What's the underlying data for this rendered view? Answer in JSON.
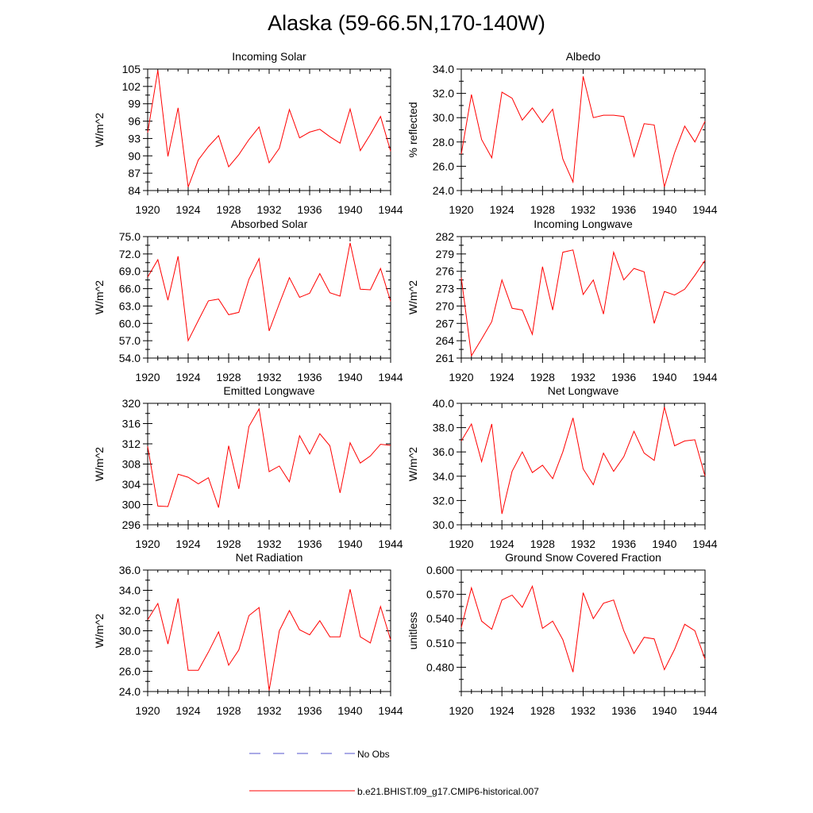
{
  "title": "Alaska (59-66.5N,170-140W)",
  "legend": [
    {
      "label": "No Obs",
      "color": "#5555cc",
      "dash": true
    },
    {
      "label": "b.e21.BHIST.f09_g17.CMIP6-historical.007",
      "color": "#ff0000",
      "dash": false
    }
  ],
  "line_color": "#ff0000",
  "chart_data": [
    {
      "type": "line",
      "title": "Incoming Solar",
      "ylabel": "W/m^2",
      "xlabel": "",
      "xlim": [
        1920,
        1944
      ],
      "ylim": [
        84,
        105
      ],
      "xticks": [
        1920,
        1924,
        1928,
        1932,
        1936,
        1940,
        1944
      ],
      "yticks": [
        84,
        87,
        90,
        93,
        96,
        99,
        102,
        105
      ],
      "ytick_labels": [
        "84",
        "87",
        "90",
        "93",
        "96",
        "99",
        "102",
        "105"
      ],
      "x": [
        1920,
        1921,
        1922,
        1923,
        1924,
        1925,
        1926,
        1927,
        1928,
        1929,
        1930,
        1931,
        1932,
        1933,
        1934,
        1935,
        1936,
        1937,
        1938,
        1939,
        1940,
        1941,
        1942,
        1943,
        1944
      ],
      "y": [
        94.0,
        104.8,
        89.9,
        98.3,
        84.6,
        89.3,
        91.6,
        93.5,
        88.1,
        90.2,
        92.8,
        95.0,
        88.8,
        91.3,
        98.0,
        93.1,
        94.1,
        94.6,
        93.3,
        92.2,
        98.1,
        90.9,
        93.7,
        96.8,
        90.8
      ]
    },
    {
      "type": "line",
      "title": "Albedo",
      "ylabel": "% reflected",
      "xlabel": "",
      "xlim": [
        1920,
        1944
      ],
      "ylim": [
        24.0,
        34.0
      ],
      "xticks": [
        1920,
        1924,
        1928,
        1932,
        1936,
        1940,
        1944
      ],
      "yticks": [
        24,
        26,
        28,
        30,
        32,
        34
      ],
      "ytick_labels": [
        "24.0",
        "26.0",
        "28.0",
        "30.0",
        "32.0",
        "34.0"
      ],
      "x": [
        1920,
        1921,
        1922,
        1923,
        1924,
        1925,
        1926,
        1927,
        1928,
        1929,
        1930,
        1931,
        1932,
        1933,
        1934,
        1935,
        1936,
        1937,
        1938,
        1939,
        1940,
        1941,
        1942,
        1943,
        1944
      ],
      "y": [
        27.0,
        31.9,
        28.2,
        26.7,
        32.1,
        31.6,
        29.8,
        30.8,
        29.6,
        30.7,
        26.6,
        24.7,
        33.4,
        30.0,
        30.2,
        30.2,
        30.1,
        26.8,
        29.5,
        29.4,
        24.3,
        27.1,
        29.3,
        28.0,
        29.7
      ]
    },
    {
      "type": "line",
      "title": "Absorbed Solar",
      "ylabel": "W/m^2",
      "xlabel": "",
      "xlim": [
        1920,
        1944
      ],
      "ylim": [
        54.0,
        75.0
      ],
      "xticks": [
        1920,
        1924,
        1928,
        1932,
        1936,
        1940,
        1944
      ],
      "yticks": [
        54,
        57,
        60,
        63,
        66,
        69,
        72,
        75
      ],
      "ytick_labels": [
        "54.0",
        "57.0",
        "60.0",
        "63.0",
        "66.0",
        "69.0",
        "72.0",
        "75.0"
      ],
      "x": [
        1920,
        1921,
        1922,
        1923,
        1924,
        1925,
        1926,
        1927,
        1928,
        1929,
        1930,
        1931,
        1932,
        1933,
        1934,
        1935,
        1936,
        1937,
        1938,
        1939,
        1940,
        1941,
        1942,
        1943,
        1944
      ],
      "y": [
        68.0,
        71.0,
        64.0,
        71.6,
        57.0,
        60.5,
        63.9,
        64.2,
        61.5,
        61.9,
        67.6,
        71.2,
        58.7,
        63.4,
        67.9,
        64.5,
        65.2,
        68.6,
        65.3,
        64.7,
        73.9,
        65.9,
        65.8,
        69.5,
        63.8
      ]
    },
    {
      "type": "line",
      "title": "Incoming Longwave",
      "ylabel": "W/m^2",
      "xlabel": "",
      "xlim": [
        1920,
        1944
      ],
      "ylim": [
        261,
        282
      ],
      "xticks": [
        1920,
        1924,
        1928,
        1932,
        1936,
        1940,
        1944
      ],
      "yticks": [
        261,
        264,
        267,
        270,
        273,
        276,
        279,
        282
      ],
      "ytick_labels": [
        "261",
        "264",
        "267",
        "270",
        "273",
        "276",
        "279",
        "282"
      ],
      "x": [
        1920,
        1921,
        1922,
        1923,
        1924,
        1925,
        1926,
        1927,
        1928,
        1929,
        1930,
        1931,
        1932,
        1933,
        1934,
        1935,
        1936,
        1937,
        1938,
        1939,
        1940,
        1941,
        1942,
        1943,
        1944
      ],
      "y": [
        274.9,
        261.4,
        264.3,
        267.3,
        274.5,
        269.6,
        269.3,
        265.1,
        276.8,
        269.3,
        279.3,
        279.7,
        272.0,
        274.5,
        268.6,
        279.3,
        274.5,
        276.5,
        275.9,
        267.0,
        272.5,
        271.9,
        272.9,
        275.3,
        277.9
      ]
    },
    {
      "type": "line",
      "title": "Emitted Longwave",
      "ylabel": "W/m^2",
      "xlabel": "",
      "xlim": [
        1920,
        1944
      ],
      "ylim": [
        296,
        320
      ],
      "xticks": [
        1920,
        1924,
        1928,
        1932,
        1936,
        1940,
        1944
      ],
      "yticks": [
        296,
        300,
        304,
        308,
        312,
        316,
        320
      ],
      "ytick_labels": [
        "296",
        "300",
        "304",
        "308",
        "312",
        "316",
        "320"
      ],
      "x": [
        1920,
        1921,
        1922,
        1923,
        1924,
        1925,
        1926,
        1927,
        1928,
        1929,
        1930,
        1931,
        1932,
        1933,
        1934,
        1935,
        1936,
        1937,
        1938,
        1939,
        1940,
        1941,
        1942,
        1943,
        1944
      ],
      "y": [
        311.5,
        299.7,
        299.6,
        306.0,
        305.4,
        304.1,
        305.3,
        299.4,
        311.6,
        303.1,
        315.4,
        318.9,
        306.5,
        307.6,
        304.5,
        313.6,
        310.0,
        314.0,
        311.6,
        302.3,
        312.2,
        308.2,
        309.6,
        311.9,
        311.7
      ]
    },
    {
      "type": "line",
      "title": "Net Longwave",
      "ylabel": "W/m^2",
      "xlabel": "",
      "xlim": [
        1920,
        1944
      ],
      "ylim": [
        30.0,
        40.0
      ],
      "xticks": [
        1920,
        1924,
        1928,
        1932,
        1936,
        1940,
        1944
      ],
      "yticks": [
        30,
        32,
        34,
        36,
        38,
        40
      ],
      "ytick_labels": [
        "30.0",
        "32.0",
        "34.0",
        "36.0",
        "38.0",
        "40.0"
      ],
      "x": [
        1920,
        1921,
        1922,
        1923,
        1924,
        1925,
        1926,
        1927,
        1928,
        1929,
        1930,
        1931,
        1932,
        1933,
        1934,
        1935,
        1936,
        1937,
        1938,
        1939,
        1940,
        1941,
        1942,
        1943,
        1944
      ],
      "y": [
        36.9,
        38.3,
        35.2,
        38.3,
        30.9,
        34.4,
        36.0,
        34.3,
        34.9,
        33.8,
        36.0,
        38.8,
        34.6,
        33.3,
        35.9,
        34.4,
        35.6,
        37.7,
        35.9,
        35.3,
        39.7,
        36.5,
        36.9,
        37.0,
        34.0
      ]
    },
    {
      "type": "line",
      "title": "Net Radiation",
      "ylabel": "W/m^2",
      "xlabel": "",
      "xlim": [
        1920,
        1944
      ],
      "ylim": [
        24.0,
        36.0
      ],
      "xticks": [
        1920,
        1924,
        1928,
        1932,
        1936,
        1940,
        1944
      ],
      "yticks": [
        24,
        26,
        28,
        30,
        32,
        34,
        36
      ],
      "ytick_labels": [
        "24.0",
        "26.0",
        "28.0",
        "30.0",
        "32.0",
        "34.0",
        "36.0"
      ],
      "x": [
        1920,
        1921,
        1922,
        1923,
        1924,
        1925,
        1926,
        1927,
        1928,
        1929,
        1930,
        1931,
        1932,
        1933,
        1934,
        1935,
        1936,
        1937,
        1938,
        1939,
        1940,
        1941,
        1942,
        1943,
        1944
      ],
      "y": [
        31.1,
        32.7,
        28.7,
        33.2,
        26.1,
        26.1,
        27.9,
        29.9,
        26.6,
        28.1,
        31.5,
        32.3,
        24.1,
        30.0,
        32.0,
        30.1,
        29.6,
        31.0,
        29.4,
        29.4,
        34.1,
        29.4,
        28.8,
        32.4,
        29.1
      ]
    },
    {
      "type": "line",
      "title": "Ground Snow Covered Fraction",
      "ylabel": "unitless",
      "xlabel": "",
      "xlim": [
        1920,
        1944
      ],
      "ylim": [
        0.45,
        0.6
      ],
      "xticks": [
        1920,
        1924,
        1928,
        1932,
        1936,
        1940,
        1944
      ],
      "yticks": [
        0.48,
        0.51,
        0.54,
        0.57,
        0.6
      ],
      "ytick_labels": [
        "0.480",
        "0.510",
        "0.540",
        "0.570",
        "0.600"
      ],
      "x": [
        1920,
        1921,
        1922,
        1923,
        1924,
        1925,
        1926,
        1927,
        1928,
        1929,
        1930,
        1931,
        1932,
        1933,
        1934,
        1935,
        1936,
        1937,
        1938,
        1939,
        1940,
        1941,
        1942,
        1943,
        1944
      ],
      "y": [
        0.529,
        0.578,
        0.537,
        0.527,
        0.563,
        0.569,
        0.554,
        0.58,
        0.528,
        0.537,
        0.514,
        0.474,
        0.572,
        0.54,
        0.559,
        0.563,
        0.525,
        0.497,
        0.517,
        0.515,
        0.477,
        0.502,
        0.533,
        0.525,
        0.49
      ]
    }
  ]
}
